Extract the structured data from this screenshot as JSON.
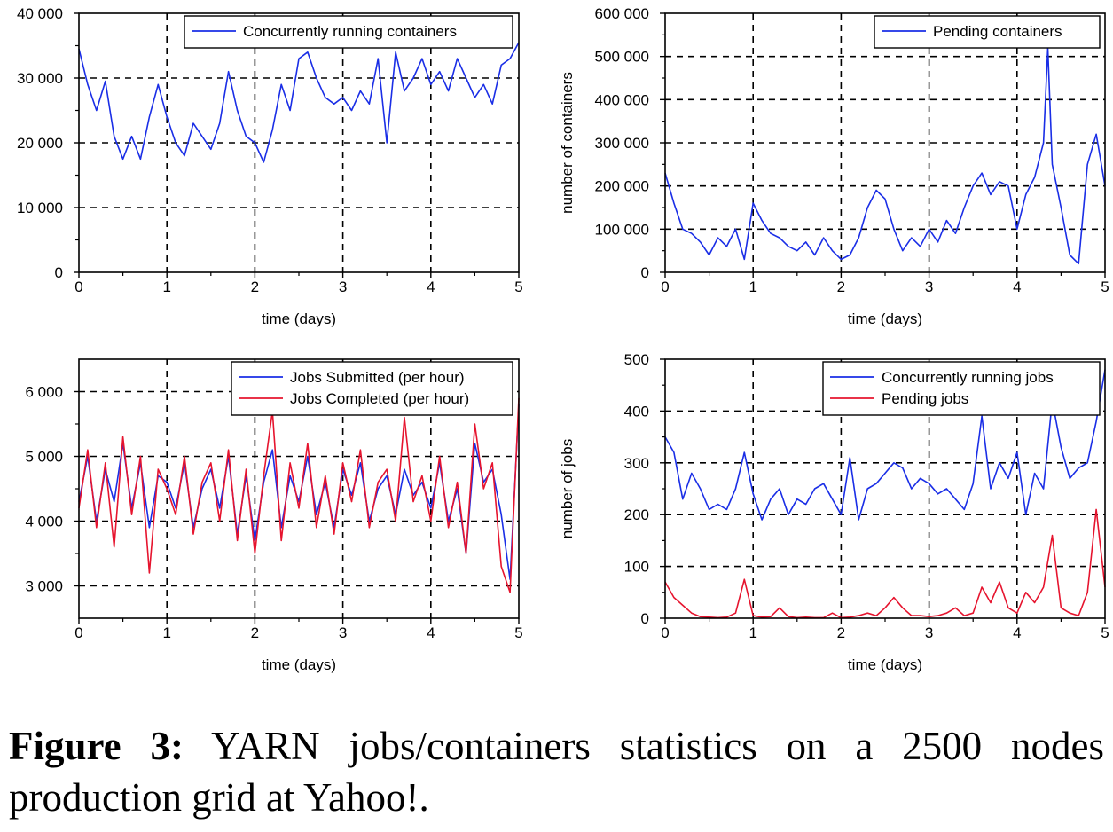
{
  "caption": {
    "label": "Figure 3:",
    "text": "YARN jobs/containers statistics on a 2500 nodes production grid at Yahoo!."
  },
  "chart_data": [
    {
      "type": "line",
      "xlabel": "time (days)",
      "ylabel": "",
      "xlim": [
        0,
        5
      ],
      "ylim": [
        0,
        40000
      ],
      "x_ticks": [
        0,
        1,
        2,
        3,
        4,
        5
      ],
      "y_ticks": [
        0,
        10000,
        20000,
        30000,
        40000
      ],
      "y_tick_labels": [
        "0",
        "10 000",
        "20 000",
        "30 000",
        "40 000"
      ],
      "grid": true,
      "legend_position": "top-right",
      "series": [
        {
          "name": "Concurrently running containers",
          "color": "#1a2ee6",
          "x": [
            0,
            0.1,
            0.2,
            0.3,
            0.4,
            0.5,
            0.6,
            0.7,
            0.8,
            0.9,
            1,
            1.1,
            1.2,
            1.3,
            1.4,
            1.5,
            1.6,
            1.7,
            1.8,
            1.9,
            2,
            2.1,
            2.2,
            2.3,
            2.4,
            2.5,
            2.6,
            2.7,
            2.8,
            2.9,
            3,
            3.1,
            3.2,
            3.3,
            3.4,
            3.5,
            3.6,
            3.7,
            3.8,
            3.9,
            4,
            4.1,
            4.2,
            4.3,
            4.4,
            4.5,
            4.6,
            4.7,
            4.8,
            4.9,
            5
          ],
          "values": [
            34500,
            29000,
            25000,
            29500,
            21000,
            17500,
            21000,
            17500,
            24000,
            29000,
            24000,
            20000,
            18000,
            23000,
            21000,
            19000,
            23000,
            31000,
            25000,
            21000,
            20000,
            17000,
            22000,
            29000,
            25000,
            33000,
            34000,
            30000,
            27000,
            26000,
            27000,
            25000,
            28000,
            26000,
            33000,
            20000,
            34000,
            28000,
            30000,
            33000,
            29000,
            31000,
            28000,
            33000,
            30000,
            27000,
            29000,
            26000,
            32000,
            33000,
            35500
          ]
        }
      ]
    },
    {
      "type": "line",
      "xlabel": "time (days)",
      "ylabel": "number of containers",
      "xlim": [
        0,
        5
      ],
      "ylim": [
        0,
        600000
      ],
      "x_ticks": [
        0,
        1,
        2,
        3,
        4,
        5
      ],
      "y_ticks": [
        0,
        100000,
        200000,
        300000,
        400000,
        500000,
        600000
      ],
      "y_tick_labels": [
        "0",
        "100 000",
        "200 000",
        "300 000",
        "400 000",
        "500 000",
        "600 000"
      ],
      "grid": true,
      "legend_position": "top-right",
      "series": [
        {
          "name": "Pending containers",
          "color": "#1a2ee6",
          "x": [
            0,
            0.1,
            0.2,
            0.3,
            0.4,
            0.5,
            0.6,
            0.7,
            0.8,
            0.9,
            1,
            1.1,
            1.2,
            1.3,
            1.4,
            1.5,
            1.6,
            1.7,
            1.8,
            1.9,
            2,
            2.1,
            2.2,
            2.3,
            2.4,
            2.5,
            2.6,
            2.7,
            2.8,
            2.9,
            3,
            3.1,
            3.2,
            3.3,
            3.4,
            3.5,
            3.6,
            3.7,
            3.8,
            3.9,
            4,
            4.1,
            4.2,
            4.3,
            4.35,
            4.4,
            4.5,
            4.6,
            4.7,
            4.8,
            4.9,
            5
          ],
          "values": [
            230000,
            160000,
            100000,
            90000,
            70000,
            40000,
            80000,
            60000,
            100000,
            30000,
            160000,
            120000,
            90000,
            80000,
            60000,
            50000,
            70000,
            40000,
            80000,
            50000,
            30000,
            40000,
            80000,
            150000,
            190000,
            170000,
            100000,
            50000,
            80000,
            60000,
            100000,
            70000,
            120000,
            90000,
            150000,
            200000,
            230000,
            180000,
            210000,
            200000,
            100000,
            180000,
            220000,
            300000,
            520000,
            250000,
            150000,
            40000,
            20000,
            250000,
            320000,
            200000
          ]
        }
      ]
    },
    {
      "type": "line",
      "xlabel": "time (days)",
      "ylabel": "",
      "xlim": [
        0,
        5
      ],
      "ylim": [
        2500,
        6500
      ],
      "x_ticks": [
        0,
        1,
        2,
        3,
        4,
        5
      ],
      "y_ticks": [
        3000,
        4000,
        5000,
        6000
      ],
      "y_tick_labels": [
        "3 000",
        "4 000",
        "5 000",
        "6 000"
      ],
      "grid": true,
      "legend_position": "top-right",
      "series": [
        {
          "name": "Jobs Submitted (per hour)",
          "color": "#1a2ee6",
          "x": [
            0,
            0.1,
            0.2,
            0.3,
            0.4,
            0.5,
            0.6,
            0.7,
            0.8,
            0.9,
            1,
            1.1,
            1.2,
            1.3,
            1.4,
            1.5,
            1.6,
            1.7,
            1.8,
            1.9,
            2,
            2.1,
            2.2,
            2.3,
            2.4,
            2.5,
            2.6,
            2.7,
            2.8,
            2.9,
            3,
            3.1,
            3.2,
            3.3,
            3.4,
            3.5,
            3.6,
            3.7,
            3.8,
            3.9,
            4,
            4.1,
            4.2,
            4.3,
            4.4,
            4.5,
            4.6,
            4.7,
            4.8,
            4.9,
            5
          ],
          "values": [
            4300,
            5000,
            4000,
            4800,
            4300,
            5200,
            4200,
            4900,
            3900,
            4700,
            4600,
            4200,
            4900,
            3900,
            4500,
            4800,
            4200,
            5000,
            3800,
            4700,
            3700,
            4600,
            5100,
            3900,
            4700,
            4300,
            5000,
            4100,
            4600,
            3900,
            4800,
            4400,
            4900,
            4000,
            4500,
            4700,
            4100,
            4800,
            4400,
            4600,
            4200,
            4900,
            4000,
            4500,
            3500,
            5200,
            4600,
            4800,
            4100,
            3100,
            5800
          ]
        },
        {
          "name": "Jobs Completed (per hour)",
          "color": "#e6142e",
          "x": [
            0,
            0.1,
            0.2,
            0.3,
            0.4,
            0.5,
            0.6,
            0.7,
            0.8,
            0.9,
            1,
            1.1,
            1.2,
            1.3,
            1.4,
            1.5,
            1.6,
            1.7,
            1.8,
            1.9,
            2,
            2.1,
            2.2,
            2.3,
            2.4,
            2.5,
            2.6,
            2.7,
            2.8,
            2.9,
            3,
            3.1,
            3.2,
            3.3,
            3.4,
            3.5,
            3.6,
            3.7,
            3.8,
            3.9,
            4,
            4.1,
            4.2,
            4.3,
            4.4,
            4.5,
            4.6,
            4.7,
            4.8,
            4.9,
            5
          ],
          "values": [
            4200,
            5100,
            3900,
            4900,
            3600,
            5300,
            4100,
            5000,
            3200,
            4800,
            4500,
            4100,
            5000,
            3800,
            4600,
            4900,
            4000,
            5100,
            3700,
            4800,
            3500,
            4700,
            5700,
            3700,
            4900,
            4200,
            5200,
            3900,
            4700,
            3800,
            4900,
            4300,
            5100,
            3900,
            4600,
            4800,
            4000,
            5600,
            4300,
            4700,
            4000,
            5000,
            3900,
            4600,
            3500,
            5500,
            4500,
            4900,
            3300,
            2900,
            5900
          ]
        }
      ]
    },
    {
      "type": "line",
      "xlabel": "time (days)",
      "ylabel": "number of jobs",
      "xlim": [
        0,
        5
      ],
      "ylim": [
        0,
        500
      ],
      "x_ticks": [
        0,
        1,
        2,
        3,
        4,
        5
      ],
      "y_ticks": [
        0,
        100,
        200,
        300,
        400,
        500
      ],
      "y_tick_labels": [
        "0",
        "100",
        "200",
        "300",
        "400",
        "500"
      ],
      "grid": true,
      "legend_position": "top-right",
      "series": [
        {
          "name": "Concurrently running jobs",
          "color": "#1a2ee6",
          "x": [
            0,
            0.1,
            0.2,
            0.3,
            0.4,
            0.5,
            0.6,
            0.7,
            0.8,
            0.9,
            1,
            1.1,
            1.2,
            1.3,
            1.4,
            1.5,
            1.6,
            1.7,
            1.8,
            1.9,
            2,
            2.1,
            2.2,
            2.3,
            2.4,
            2.5,
            2.6,
            2.7,
            2.8,
            2.9,
            3,
            3.1,
            3.2,
            3.3,
            3.4,
            3.5,
            3.6,
            3.7,
            3.8,
            3.9,
            4,
            4.1,
            4.2,
            4.3,
            4.4,
            4.5,
            4.6,
            4.7,
            4.8,
            4.9,
            5
          ],
          "values": [
            350,
            320,
            230,
            280,
            250,
            210,
            220,
            210,
            250,
            320,
            240,
            190,
            230,
            250,
            200,
            230,
            220,
            250,
            260,
            230,
            200,
            310,
            190,
            250,
            260,
            280,
            300,
            290,
            250,
            270,
            260,
            240,
            250,
            230,
            210,
            260,
            390,
            250,
            300,
            270,
            320,
            200,
            280,
            250,
            420,
            330,
            270,
            290,
            300,
            380,
            480
          ]
        },
        {
          "name": "Pending jobs",
          "color": "#e6142e",
          "x": [
            0,
            0.1,
            0.2,
            0.3,
            0.4,
            0.5,
            0.6,
            0.7,
            0.8,
            0.9,
            1,
            1.1,
            1.2,
            1.3,
            1.4,
            1.5,
            1.6,
            1.7,
            1.8,
            1.9,
            2,
            2.1,
            2.2,
            2.3,
            2.4,
            2.5,
            2.6,
            2.7,
            2.8,
            2.9,
            3,
            3.1,
            3.2,
            3.3,
            3.4,
            3.5,
            3.6,
            3.7,
            3.8,
            3.9,
            4,
            4.1,
            4.2,
            4.3,
            4.4,
            4.5,
            4.6,
            4.7,
            4.8,
            4.9,
            5
          ],
          "values": [
            70,
            40,
            25,
            10,
            3,
            2,
            1,
            2,
            10,
            75,
            5,
            2,
            3,
            20,
            3,
            1,
            2,
            1,
            1,
            10,
            1,
            2,
            5,
            10,
            5,
            20,
            40,
            20,
            5,
            5,
            3,
            5,
            10,
            20,
            5,
            10,
            60,
            30,
            70,
            20,
            10,
            50,
            30,
            60,
            160,
            20,
            10,
            5,
            50,
            210,
            60
          ]
        }
      ]
    }
  ]
}
